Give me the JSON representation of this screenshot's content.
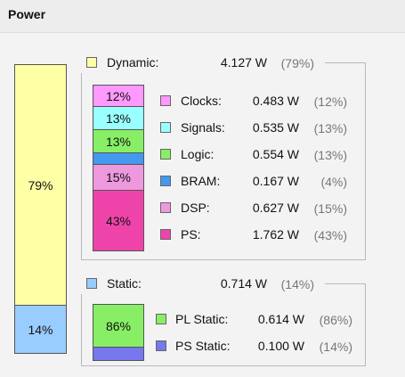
{
  "panel": {
    "title": "Power"
  },
  "colors": {
    "dynamic": "#ffffa6",
    "static": "#99ccff",
    "clocks": "#ff99ff",
    "signals": "#99ffff",
    "logic": "#88ee66",
    "bram": "#4499ee",
    "dsp": "#ee99dd",
    "ps": "#ee44aa",
    "pl_static": "#88ee66",
    "ps_static": "#7777ee"
  },
  "total_bar": {
    "dynamic_pct": "79%",
    "static_pct": "14%"
  },
  "dynamic": {
    "label": "Dynamic:",
    "value": "4.127 W",
    "pct": "(79%)",
    "bar": {
      "clocks": "12%",
      "signals": "13%",
      "logic": "13%",
      "dsp": "15%",
      "ps": "43%"
    },
    "items": [
      {
        "label": "Clocks:",
        "value": "0.483 W",
        "pct": "(12%)"
      },
      {
        "label": "Signals:",
        "value": "0.535 W",
        "pct": "(13%)"
      },
      {
        "label": "Logic:",
        "value": "0.554 W",
        "pct": "(13%)"
      },
      {
        "label": "BRAM:",
        "value": "0.167 W",
        "pct": "(4%)"
      },
      {
        "label": "DSP:",
        "value": "0.627 W",
        "pct": "(15%)"
      },
      {
        "label": "PS:",
        "value": "1.762 W",
        "pct": "(43%)"
      }
    ]
  },
  "static": {
    "label": "Static:",
    "value": "0.714 W",
    "pct": "(14%)",
    "bar": {
      "pl": "86%"
    },
    "items": [
      {
        "label": "PL Static:",
        "value": "0.614 W",
        "pct": "(86%)"
      },
      {
        "label": "PS Static:",
        "value": "0.100 W",
        "pct": "(14%)"
      }
    ]
  }
}
